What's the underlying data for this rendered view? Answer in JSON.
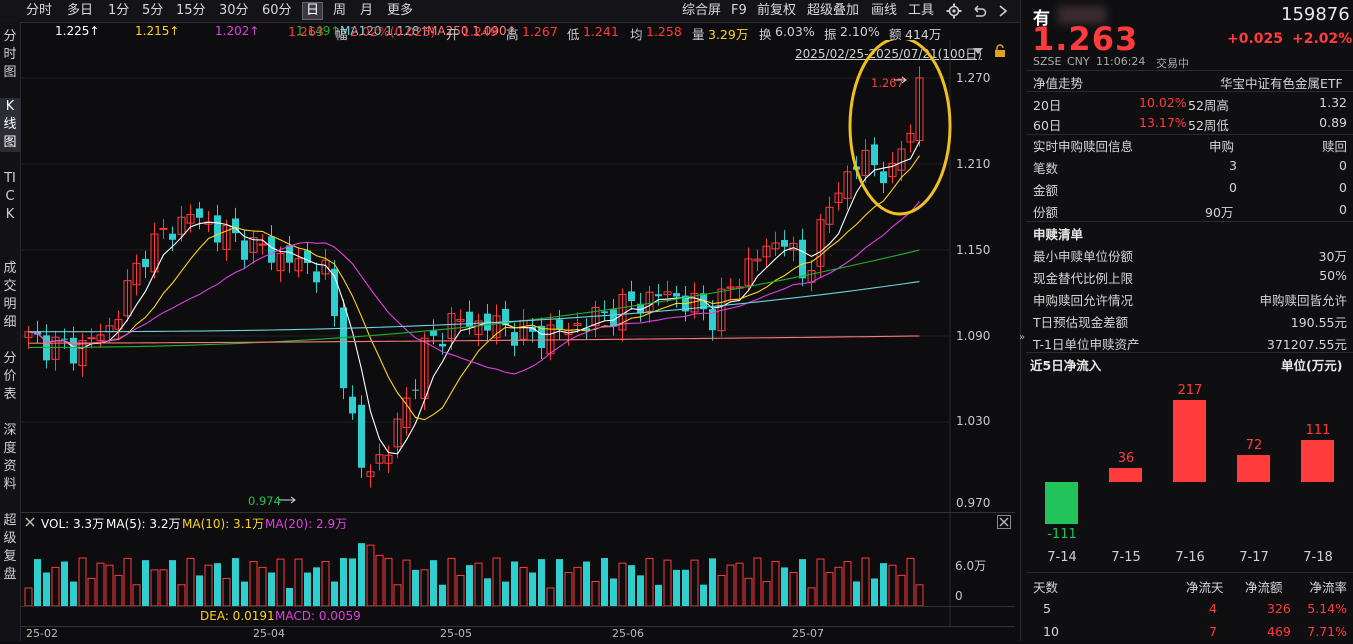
{
  "toolbar": {
    "periods": [
      "分时",
      "多日",
      "1分",
      "5分",
      "15分",
      "30分",
      "60分",
      "日",
      "周",
      "月",
      "更多"
    ],
    "selected": "日",
    "right_items": [
      "综合屏",
      "F9",
      "前复权",
      "超级叠加",
      "画线",
      "工具"
    ]
  },
  "left_tabs": [
    "分时图",
    "K线图",
    "TICK",
    "成交明细",
    "分价表",
    "深度资料",
    "超级复盘"
  ],
  "indicators": {
    "ma_values": [
      "1.225↑",
      "1.215↑",
      "1.202↑",
      "1.149↑"
    ],
    "ma120": "MA120 1.128↑",
    "ma250": "MA250 1.090↑",
    "last": "1.263",
    "change_label": "幅",
    "change_value": "2.02%(0.025)",
    "open_label": "开",
    "open": "1.249",
    "high_label": "高",
    "high": "1.267",
    "low_label": "低",
    "low": "1.241",
    "avg_label": "均",
    "avg": "1.258",
    "vol_label": "量",
    "vol": "3.29万",
    "turnover_label": "换",
    "turnover": "6.03%",
    "amp_label": "振",
    "amp": "2.10%",
    "amount_label": "额",
    "amount": "414万",
    "date_range": "2025/02/25-2025/07/21(100日)"
  },
  "colors": {
    "up": "#ff3b3b",
    "down": "#2fcfcf",
    "ma5": "#ffffff",
    "ma10": "#ffd21a",
    "ma20": "#e040e0",
    "ma30": "#7fcf30",
    "ma60": "#20b030",
    "ma120": "#6fd0e0",
    "ma250": "#ff7777",
    "highlight": "#f0c020"
  },
  "chart_data": {
    "type": "candlestick",
    "y_ticks": [
      "1.270",
      "1.210",
      "1.150",
      "1.090",
      "1.030",
      "0.970"
    ],
    "x_ticks": [
      "25-02",
      "25-04",
      "25-05",
      "25-06",
      "25-07"
    ],
    "high_marker": "1.267",
    "low_marker": "0.974",
    "volume_panel": {
      "vol": "VOL: 3.3万",
      "ma5": "MA(5): 3.2万",
      "ma10": "MA(10): 3.1万",
      "ma20": "MA(20): 2.9万",
      "y_ticks": [
        "6.0万",
        "0"
      ]
    },
    "macd_panel": {
      "dea": "DEA: 0.0191",
      "macd": "MACD: 0.0059"
    }
  },
  "quote": {
    "name": "有",
    "code": "159876",
    "price": "1.263",
    "change": "+0.025",
    "change_pct": "+2.02%",
    "market": "SZSE",
    "currency": "CNY",
    "time": "11:06:24",
    "status": "交易中",
    "nav_trend_label": "净值走势",
    "fund_name": "华宝中证有色金属ETF",
    "rows": [
      {
        "a": "20日",
        "b": "10.02%",
        "c": "52周高",
        "d": "1.32"
      },
      {
        "a": "60日",
        "b": "13.17%",
        "c": "52周低",
        "d": "0.89"
      }
    ],
    "redeem_title": "实时申购赎回信息",
    "redeem_cols": [
      "申购",
      "赎回"
    ],
    "redeem_rows": [
      {
        "label": "笔数",
        "buy": "3",
        "sell": "0"
      },
      {
        "label": "金额",
        "buy": "0",
        "sell": "0"
      },
      {
        "label": "份额",
        "buy": "90万",
        "sell": "0"
      }
    ],
    "list_title": "申赎清单",
    "list_rows": [
      {
        "label": "最小申赎单位份额",
        "value": "30万"
      },
      {
        "label": "现金替代比例上限",
        "value": "50%"
      },
      {
        "label": "申购赎回允许情况",
        "value": "申购赎回皆允许"
      },
      {
        "label": "T日预估现金差额",
        "value": "190.55元"
      },
      {
        "label": "T-1日单位申赎资产",
        "value": "371207.55元"
      }
    ],
    "flow_title": "近5日净流入",
    "flow_unit": "单位(万元)",
    "flow": {
      "dates": [
        "7-14",
        "7-15",
        "7-16",
        "7-17",
        "7-18"
      ],
      "values": [
        -111,
        36,
        217,
        72,
        111
      ]
    },
    "stats_headers": [
      "天数",
      "净流天",
      "净流额",
      "净流率"
    ],
    "stats_rows": [
      {
        "days": "5",
        "d": "4",
        "amt": "326",
        "rate": "5.14%"
      },
      {
        "days": "10",
        "d": "7",
        "amt": "469",
        "rate": "7.71%"
      }
    ]
  }
}
